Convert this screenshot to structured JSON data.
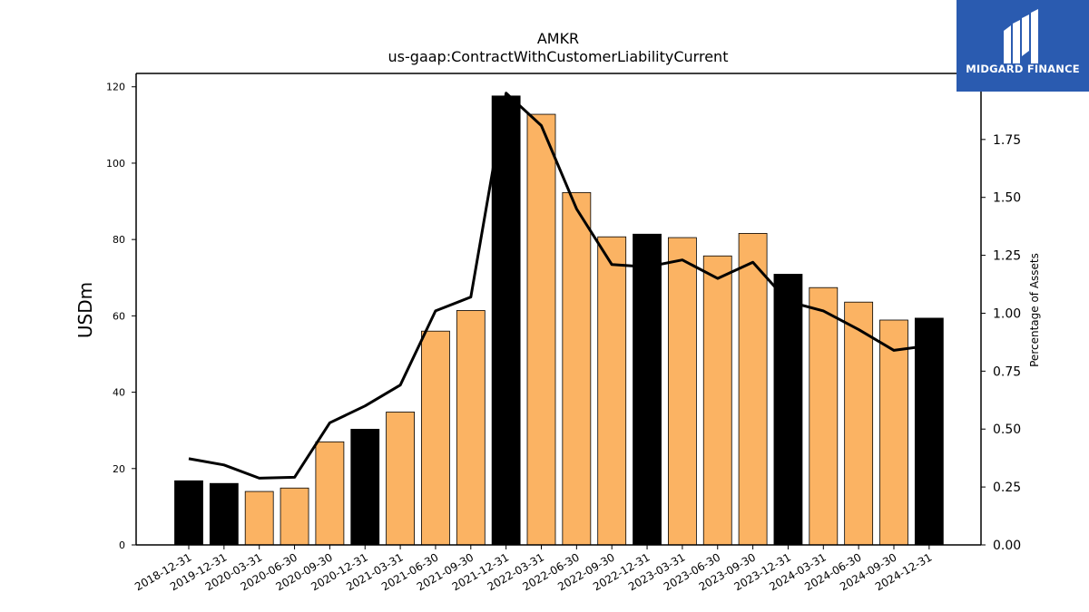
{
  "chart_data": {
    "type": "bar",
    "title": "AMKR",
    "subtitle": "us-gaap:ContractWithCustomerLiabilityCurrent",
    "ylabel": "USDm",
    "y2label": "Percentage of Assets",
    "ylim": [
      0,
      123.5
    ],
    "y2lim": [
      0,
      2.035
    ],
    "yticks": [
      0,
      20,
      40,
      60,
      80,
      100,
      120
    ],
    "y2ticks": [
      "0.00",
      "0.25",
      "0.50",
      "0.75",
      "1.00",
      "1.25",
      "1.50",
      "1.75"
    ],
    "categories": [
      "2018-12-31",
      "2019-12-31",
      "2020-03-31",
      "2020-06-30",
      "2020-09-30",
      "2020-12-31",
      "2021-03-31",
      "2021-06-30",
      "2021-09-30",
      "2021-12-31",
      "2022-03-31",
      "2022-06-30",
      "2022-09-30",
      "2022-12-31",
      "2023-03-31",
      "2023-06-30",
      "2023-09-30",
      "2023-12-31",
      "2024-03-31",
      "2024-06-30",
      "2024-09-30",
      "2024-12-31"
    ],
    "series": [
      {
        "type": "bar",
        "values": [
          16.8,
          16.1,
          14.0,
          14.9,
          27.0,
          30.3,
          34.8,
          56.0,
          61.4,
          117.6,
          112.8,
          92.3,
          80.7,
          81.4,
          80.5,
          75.7,
          81.6,
          70.9,
          67.4,
          63.6,
          58.9,
          59.4
        ],
        "colors": [
          "#000000",
          "#000000",
          "#fbb363",
          "#fbb363",
          "#fbb363",
          "#000000",
          "#fbb363",
          "#fbb363",
          "#fbb363",
          "#000000",
          "#fbb363",
          "#fbb363",
          "#fbb363",
          "#000000",
          "#fbb363",
          "#fbb363",
          "#fbb363",
          "#000000",
          "#fbb363",
          "#fbb363",
          "#fbb363",
          "#000000"
        ]
      },
      {
        "type": "line",
        "axis": "right",
        "color": "#000000",
        "values": [
          0.372,
          0.345,
          0.288,
          0.292,
          0.527,
          0.6,
          0.69,
          1.01,
          1.07,
          1.95,
          1.81,
          1.45,
          1.21,
          1.2,
          1.23,
          1.15,
          1.22,
          1.05,
          1.01,
          0.93,
          0.84,
          0.86
        ]
      }
    ],
    "grid": false,
    "legend": "none"
  },
  "logo": {
    "text": "MIDGARD FINANCE",
    "color": "#2a5bb0"
  }
}
